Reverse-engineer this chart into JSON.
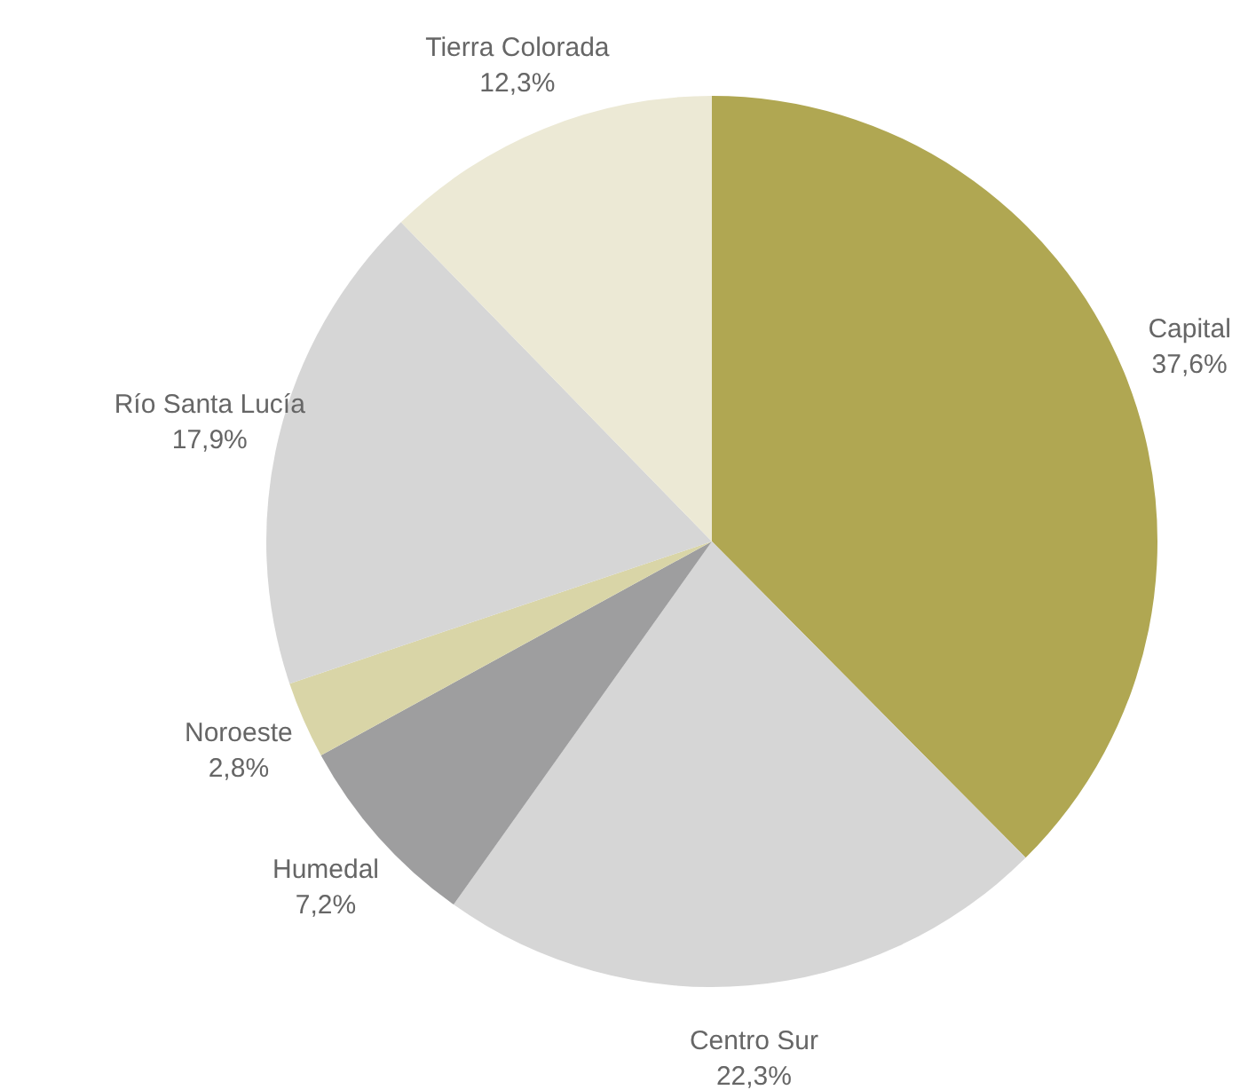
{
  "chart_data": {
    "type": "pie",
    "categories": [
      "Capital",
      "Centro Sur",
      "Humedal",
      "Noroeste",
      "Río Santa Lucía",
      "Tierra Colorada"
    ],
    "values": [
      37.6,
      22.3,
      7.2,
      2.8,
      17.9,
      12.3
    ],
    "value_labels": [
      "37,6%",
      "22,3%",
      "7,2%",
      "2,8%",
      "17,9%",
      "12,3%"
    ],
    "colors": [
      "#b0a752",
      "#d6d6d6",
      "#9e9e9f",
      "#d9d5a7",
      "#d6d6d6",
      "#ece9d5"
    ],
    "legend": false
  }
}
